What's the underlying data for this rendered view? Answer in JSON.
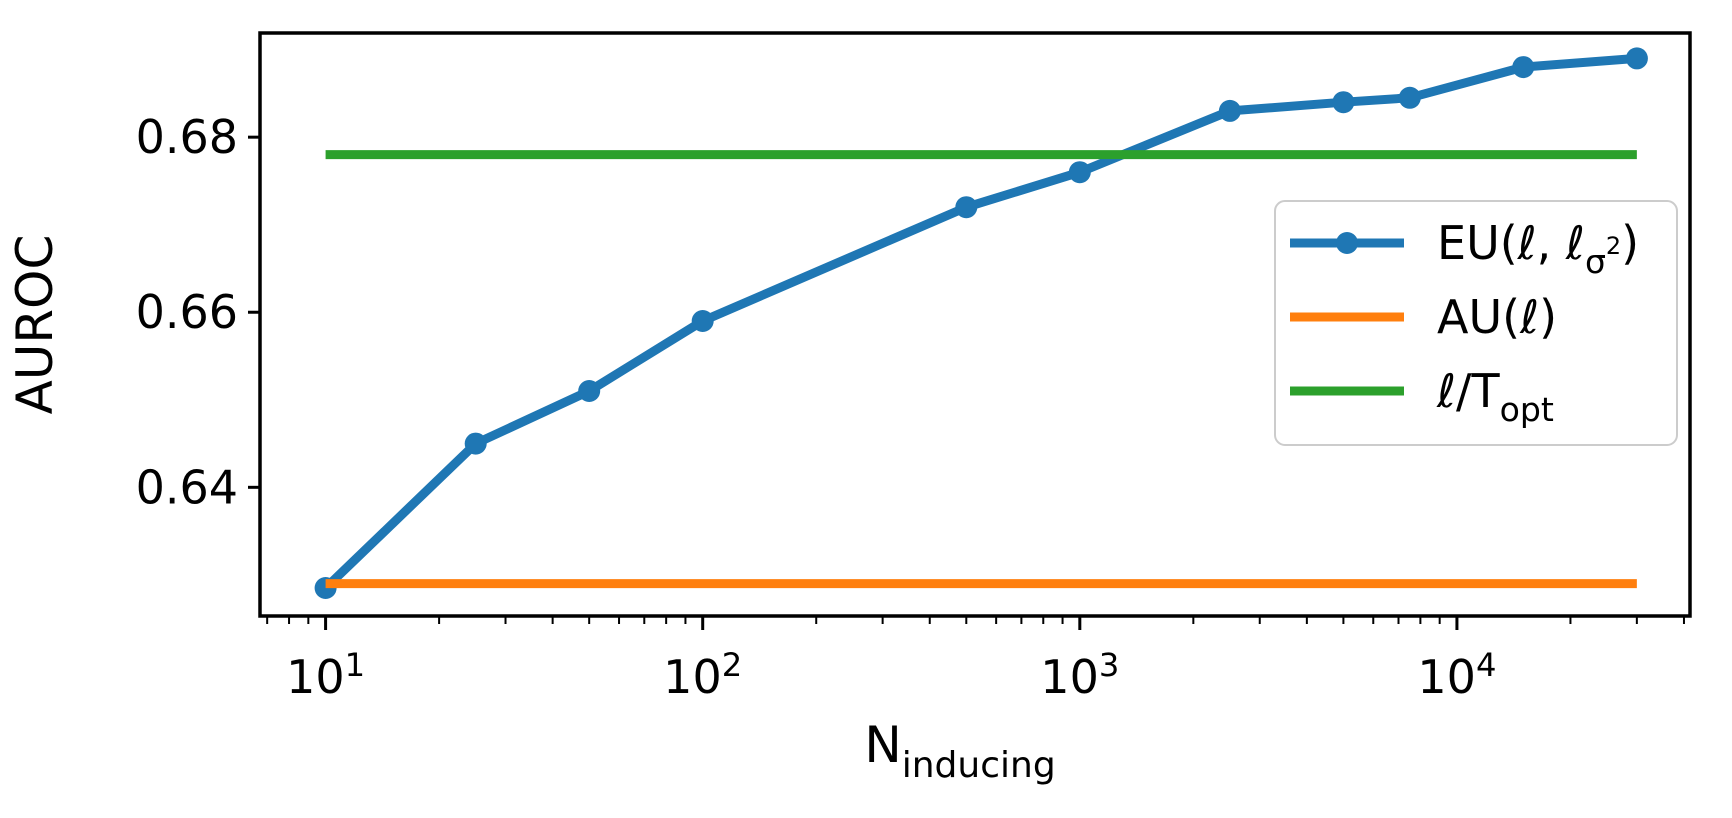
{
  "figure": {
    "background": "#ffffff",
    "text_color": "#000000",
    "spine_color": "#000000",
    "legend_border_color": "#cccccc",
    "legend_background": "#ffffff"
  },
  "axes": {
    "ylabel_text": "AUROC",
    "ylabel_runs": [
      {
        "t": "AUROC"
      }
    ],
    "xlabel_text": "N_inducing",
    "xlabel_runs": [
      {
        "t": "N"
      },
      {
        "t": "inducing",
        "sub": true
      }
    ],
    "x_ticks": [
      {
        "value": 10,
        "label": "10^1",
        "runs": [
          {
            "t": "10"
          },
          {
            "t": "1",
            "sup": true
          }
        ]
      },
      {
        "value": 100,
        "label": "10^2",
        "runs": [
          {
            "t": "10"
          },
          {
            "t": "2",
            "sup": true
          }
        ]
      },
      {
        "value": 1000,
        "label": "10^3",
        "runs": [
          {
            "t": "10"
          },
          {
            "t": "3",
            "sup": true
          }
        ]
      },
      {
        "value": 10000,
        "label": "10^4",
        "runs": [
          {
            "t": "10"
          },
          {
            "t": "4",
            "sup": true
          }
        ]
      }
    ],
    "y_ticks": [
      {
        "value": 0.64,
        "label": "0.64"
      },
      {
        "value": 0.66,
        "label": "0.66"
      },
      {
        "value": 0.68,
        "label": "0.68"
      }
    ]
  },
  "chart_data": {
    "type": "line",
    "title": "",
    "xlabel": "N_inducing",
    "ylabel": "AUROC",
    "x_scale": "log",
    "xlim": [
      6.7,
      41500
    ],
    "ylim": [
      0.6253,
      0.6919
    ],
    "grid": false,
    "legend_position": "center right",
    "series": [
      {
        "name": "EU(l, l_sigma2)",
        "legend_runs": [
          {
            "t": "EU(ℓ, ℓ"
          },
          {
            "t": "σ",
            "sub": true
          },
          {
            "t": "2",
            "subsup": true
          },
          {
            "t": ")"
          }
        ],
        "color": "#1f77b4",
        "marker": "circle",
        "x": [
          10,
          25,
          50,
          100,
          500,
          1000,
          2500,
          5000,
          7500,
          15000,
          30000
        ],
        "y": [
          0.6285,
          0.645,
          0.651,
          0.659,
          0.672,
          0.676,
          0.683,
          0.684,
          0.6845,
          0.688,
          0.689
        ]
      },
      {
        "name": "AU(l)",
        "legend_runs": [
          {
            "t": "AU(ℓ)"
          }
        ],
        "color": "#ff7f0e",
        "marker": null,
        "hline": 0.629,
        "x_span": [
          10,
          30000
        ]
      },
      {
        "name": "l/T_opt",
        "legend_runs": [
          {
            "t": "ℓ/T"
          },
          {
            "t": "opt",
            "sub": true
          }
        ],
        "color": "#2ca02c",
        "marker": null,
        "hline": 0.678,
        "x_span": [
          10,
          30000
        ]
      }
    ]
  }
}
